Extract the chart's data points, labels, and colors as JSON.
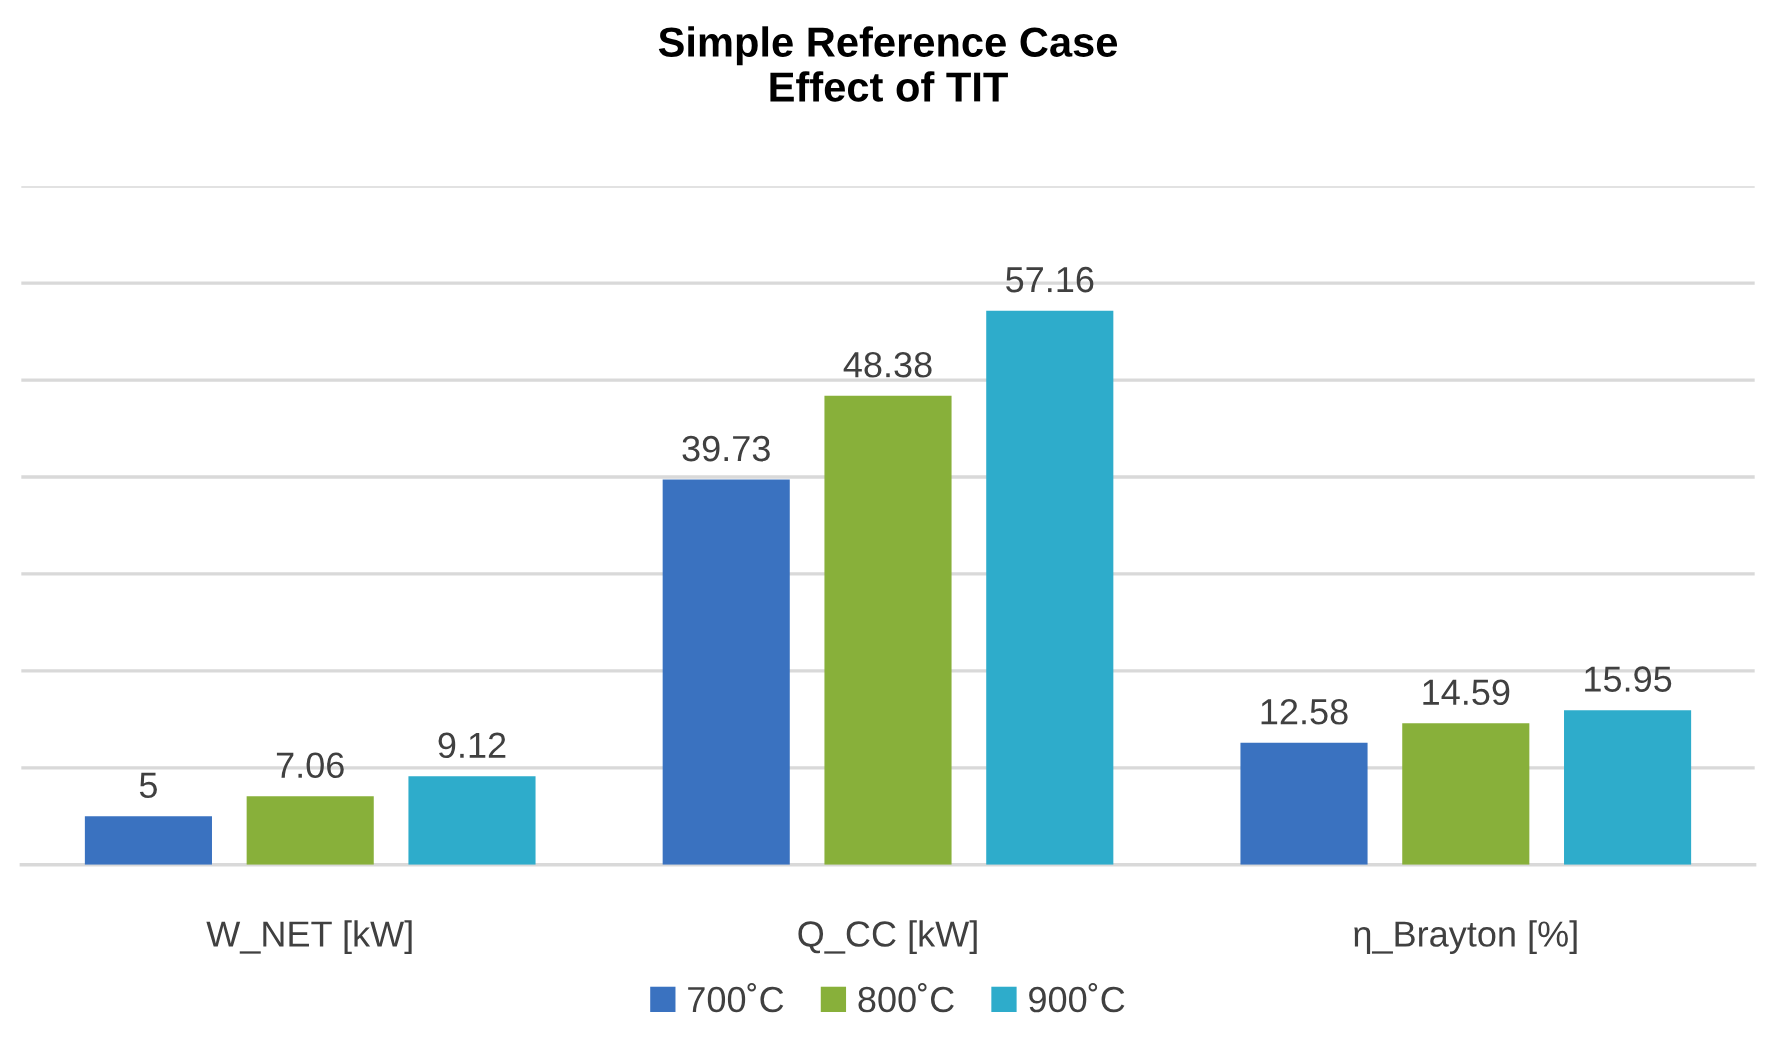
{
  "chart_data": {
    "type": "bar",
    "title": "Simple Reference Case\nEffect of TIT",
    "categories": [
      "W_NET [kW]",
      "Q_CC [kW]",
      "η_Brayton [%]"
    ],
    "series": [
      {
        "name": "700˚C",
        "color": "#3a72c0",
        "values": [
          5,
          39.73,
          12.58
        ]
      },
      {
        "name": "800˚C",
        "color": "#88b03a",
        "values": [
          7.06,
          48.38,
          14.59
        ]
      },
      {
        "name": "900˚C",
        "color": "#2eaccb",
        "values": [
          9.12,
          57.16,
          15.95
        ]
      }
    ],
    "ylim": [
      0,
      70
    ],
    "yticks": [
      {
        "value": 0,
        "label": null
      },
      {
        "value": 10,
        "label": null
      },
      {
        "value": 20,
        "label": null
      },
      {
        "value": 30,
        "label": null
      },
      {
        "value": 40,
        "label": null
      },
      {
        "value": 50,
        "label": null
      },
      {
        "value": 60,
        "label": null
      },
      {
        "value": 70,
        "label": null
      }
    ],
    "tick_labels": "x",
    "grid": "y",
    "legend": "bottom",
    "data_labels": true
  }
}
